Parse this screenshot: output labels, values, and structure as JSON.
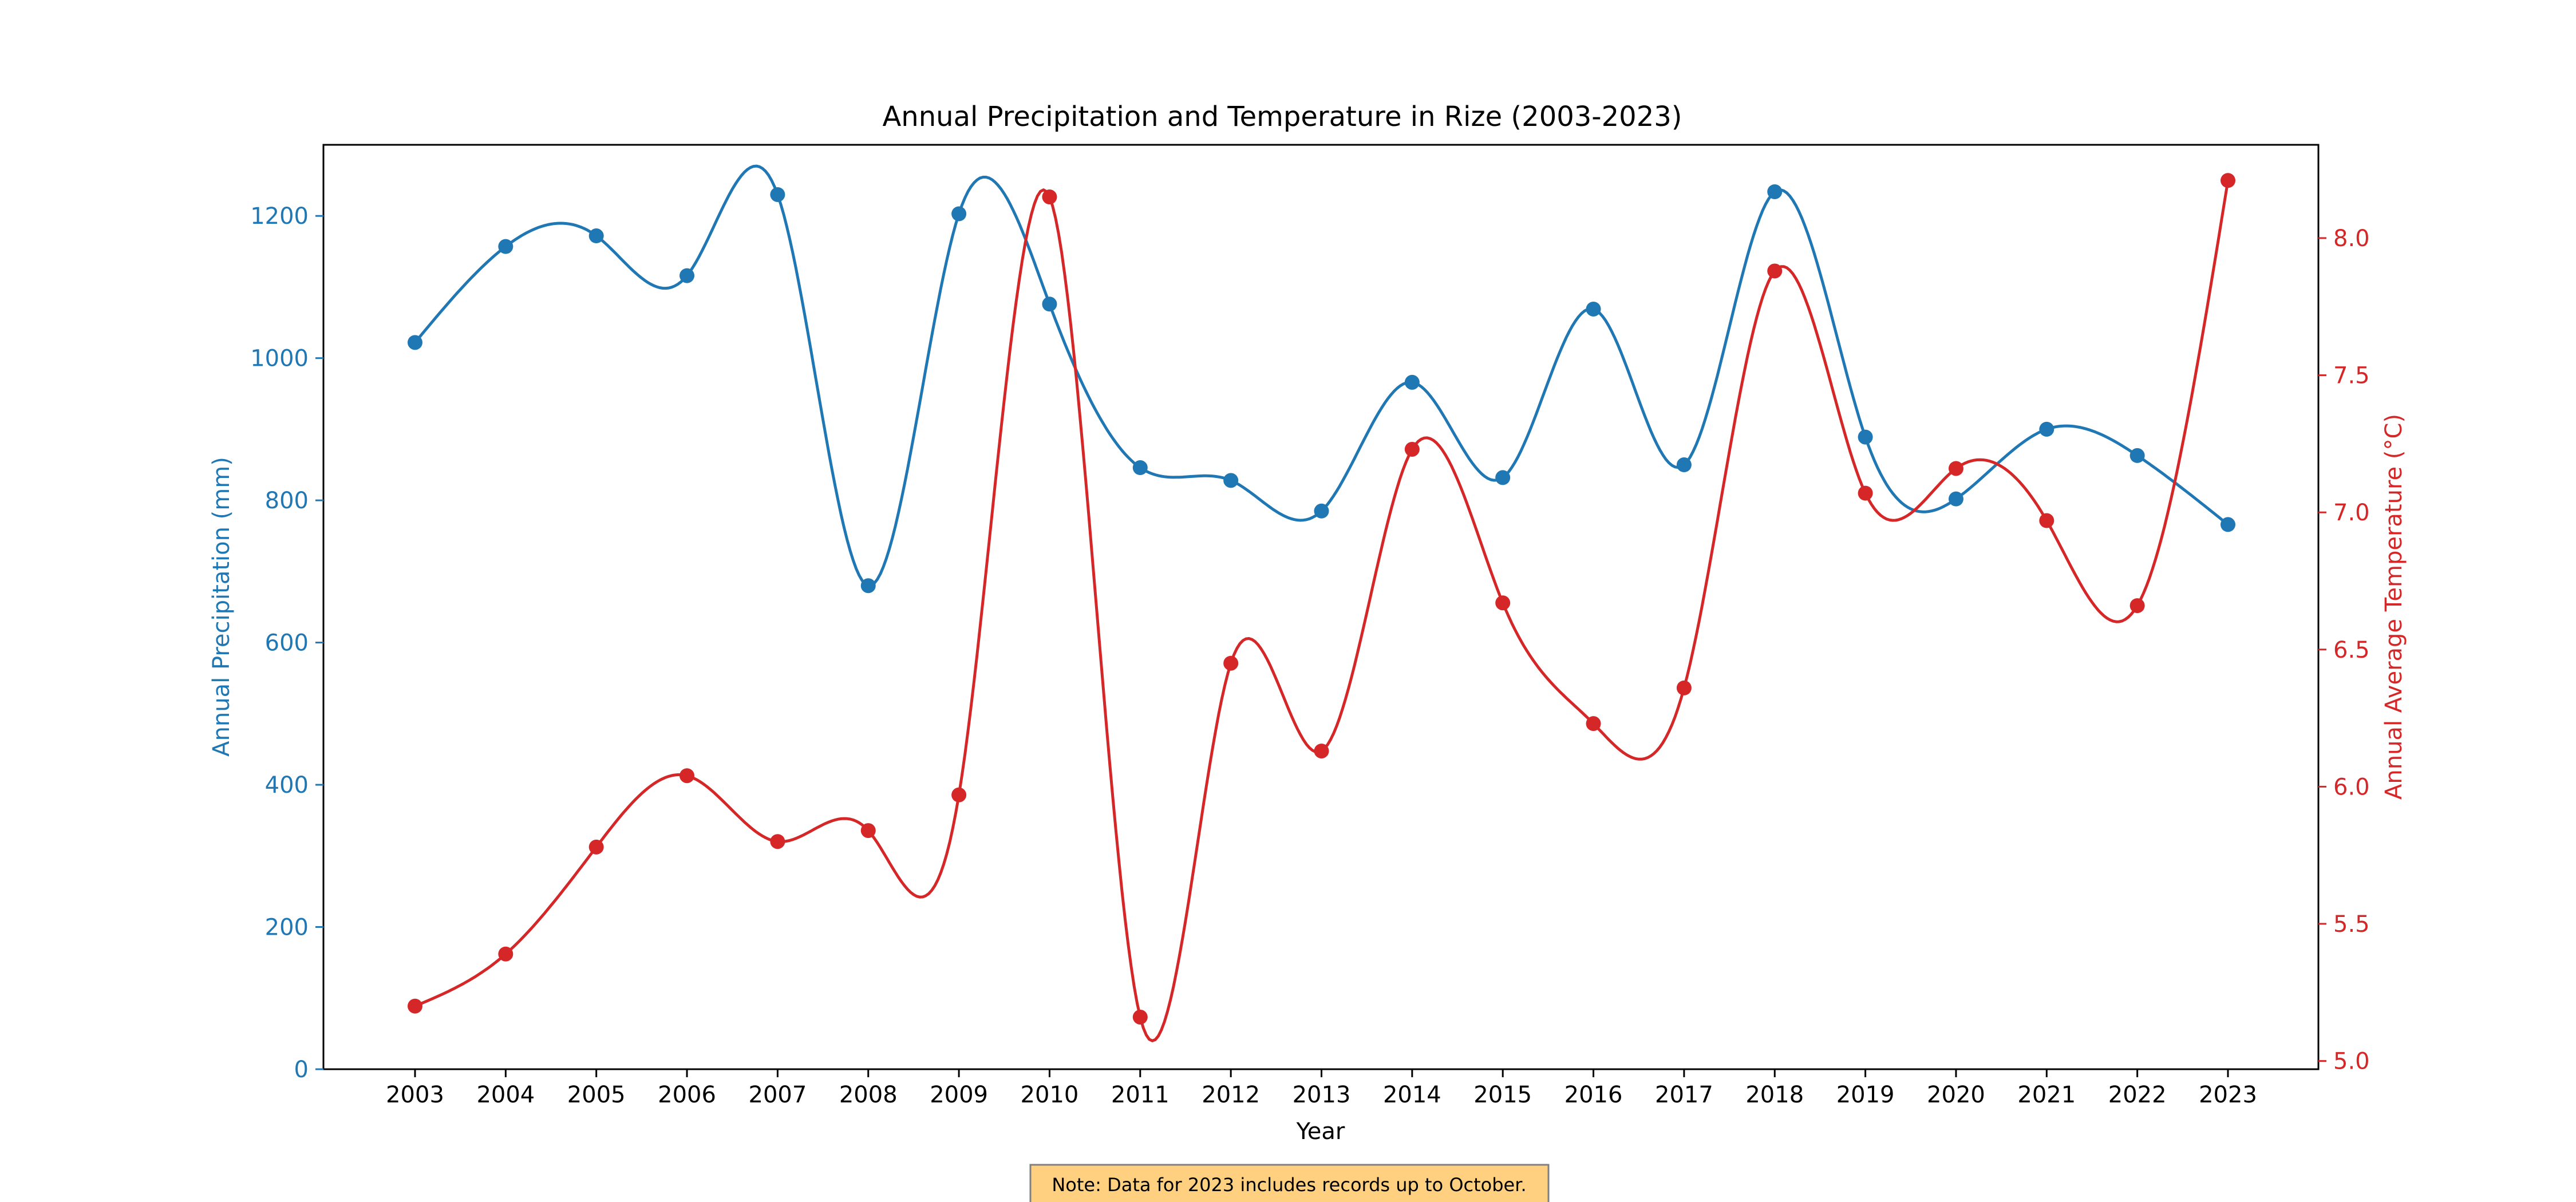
{
  "chart_data": {
    "type": "line",
    "title": "Annual Precipitation and Temperature in Rize (2003-2023)",
    "xlabel": "Year",
    "x": [
      2003,
      2004,
      2005,
      2006,
      2007,
      2008,
      2009,
      2010,
      2011,
      2012,
      2013,
      2014,
      2015,
      2016,
      2017,
      2018,
      2019,
      2020,
      2021,
      2022,
      2023
    ],
    "xticks": [
      "2003",
      "2004",
      "2005",
      "2006",
      "2007",
      "2008",
      "2009",
      "2010",
      "2011",
      "2012",
      "2013",
      "2014",
      "2015",
      "2016",
      "2017",
      "2018",
      "2019",
      "2020",
      "2021",
      "2022",
      "2023"
    ],
    "y_left": {
      "label": "Annual Precipitation (mm)",
      "lim": [
        0,
        1300
      ],
      "ticks": [
        0,
        200,
        400,
        600,
        800,
        1000,
        1200
      ],
      "tick_labels": [
        "0",
        "200",
        "400",
        "600",
        "800",
        "1000",
        "1200"
      ],
      "color": "#1f77b4"
    },
    "y_right": {
      "label": "Annual Average Temperature (°C)",
      "lim": [
        4.97,
        8.34
      ],
      "ticks": [
        5.0,
        5.5,
        6.0,
        6.5,
        7.0,
        7.5,
        8.0
      ],
      "tick_labels": [
        "5.0",
        "5.5",
        "6.0",
        "6.5",
        "7.0",
        "7.5",
        "8.0"
      ],
      "color": "#d62728"
    },
    "series": [
      {
        "axis": "left",
        "color": "#1f77b4",
        "values": [
          1022,
          1157,
          1172,
          1116,
          1230,
          680,
          1203,
          1076,
          846,
          828,
          785,
          966,
          832,
          1069,
          850,
          1234,
          889,
          802,
          900,
          863,
          766
        ]
      },
      {
        "axis": "right",
        "color": "#d62728",
        "values": [
          5.2,
          5.39,
          5.78,
          6.04,
          5.8,
          5.84,
          5.97,
          8.15,
          5.16,
          6.45,
          6.13,
          7.23,
          6.67,
          6.23,
          6.36,
          7.88,
          7.07,
          7.16,
          6.97,
          6.66,
          8.21
        ]
      }
    ],
    "grid": false,
    "annotation": "Note: Data for 2023 includes records up to October."
  }
}
